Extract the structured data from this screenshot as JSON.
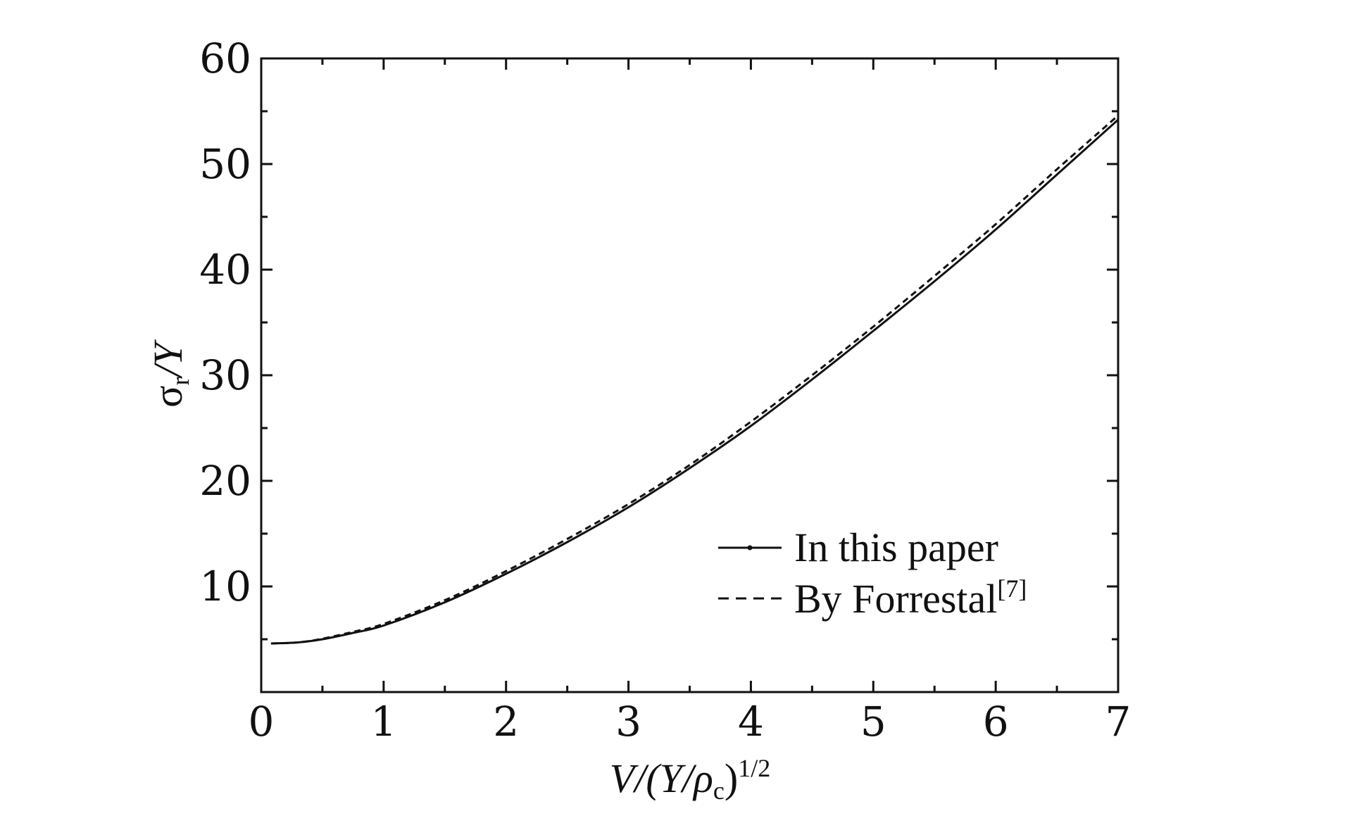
{
  "chart_data": {
    "type": "line",
    "xlabel": {
      "main": "V/(Y/ρ",
      "sub": "c",
      "mid": ")",
      "sup": "1/2"
    },
    "ylabel": {
      "main": "σ",
      "sub": "r",
      "rest": "/Y"
    },
    "xlim": [
      0,
      7
    ],
    "ylim": [
      0,
      60
    ],
    "x_ticks": [
      "0",
      "1",
      "2",
      "3",
      "4",
      "5",
      "6",
      "7"
    ],
    "y_ticks": [
      "10",
      "20",
      "30",
      "40",
      "50",
      "60"
    ],
    "grid": false,
    "legend_position": "bottom-right",
    "series": [
      {
        "name": "In this paper",
        "style": "solid",
        "color": "#111111",
        "x": [
          0.08,
          0.3,
          0.5,
          0.75,
          1.0,
          1.5,
          2.0,
          2.5,
          3.0,
          3.5,
          4.0,
          4.5,
          5.0,
          5.5,
          6.0,
          6.5,
          7.0
        ],
        "y": [
          4.6,
          4.7,
          5.0,
          5.6,
          6.3,
          8.5,
          11.2,
          14.2,
          17.5,
          21.2,
          25.2,
          29.6,
          34.2,
          38.9,
          43.8,
          49.0,
          54.2
        ]
      },
      {
        "name": "By Forrestal",
        "name_sup": "[7]",
        "style": "dashed",
        "color": "#111111",
        "x": [
          0.08,
          0.3,
          0.5,
          0.75,
          1.0,
          1.5,
          2.0,
          2.5,
          3.0,
          3.5,
          4.0,
          4.5,
          5.0,
          5.5,
          6.0,
          6.5,
          7.0
        ],
        "y": [
          4.6,
          4.7,
          5.05,
          5.7,
          6.45,
          8.7,
          11.45,
          14.5,
          17.8,
          21.5,
          25.6,
          30.0,
          34.6,
          39.4,
          44.3,
          49.5,
          54.6
        ]
      }
    ]
  }
}
